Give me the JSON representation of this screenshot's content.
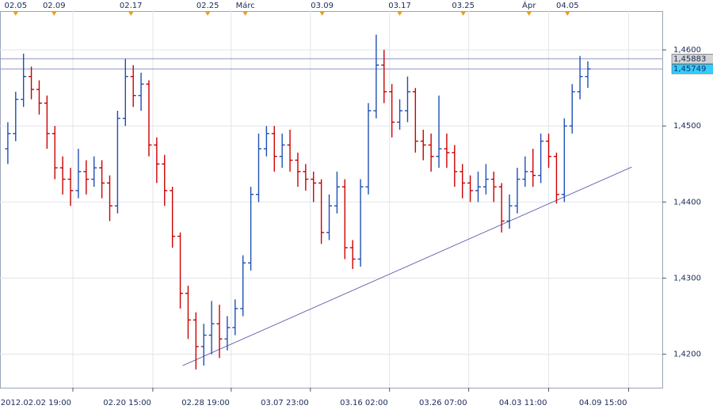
{
  "chart_data": {
    "type": "ohlc",
    "up_color": "#1f4fb4",
    "down_color": "#cc0000",
    "grid": true,
    "xlim": [
      -1,
      83.5
    ],
    "ylim": [
      1.4156,
      1.4651
    ],
    "yticks": [
      {
        "value": 1.42,
        "label": "1,4200"
      },
      {
        "value": 1.43,
        "label": "1,4300"
      },
      {
        "value": 1.44,
        "label": "1,4400"
      },
      {
        "value": 1.45,
        "label": "1,4500"
      },
      {
        "value": 1.46,
        "label": "1,4600"
      }
    ],
    "xticks": [
      {
        "value": 8.3,
        "label": "2012.02.02 19:00"
      },
      {
        "value": 18.5,
        "label": "02.20 15:00"
      },
      {
        "value": 28.5,
        "label": "02.28 19:00"
      },
      {
        "value": 38.6,
        "label": "03.07 23:00"
      },
      {
        "value": 48.7,
        "label": "03.16 02:00"
      },
      {
        "value": 58.8,
        "label": "03.26 07:00"
      },
      {
        "value": 69.0,
        "label": "04.03 11:00"
      },
      {
        "value": 79.2,
        "label": "04.09 15:00"
      }
    ],
    "top_ticks": [
      {
        "value": 1.0,
        "label": "02.05"
      },
      {
        "value": 5.9,
        "label": "02.09"
      },
      {
        "value": 15.7,
        "label": "02.17"
      },
      {
        "value": 25.5,
        "label": "02.25"
      },
      {
        "value": 30.3,
        "label": "Márc"
      },
      {
        "value": 40.1,
        "label": "03.09"
      },
      {
        "value": 50.0,
        "label": "03.17"
      },
      {
        "value": 58.1,
        "label": "03.25"
      },
      {
        "value": 66.5,
        "label": "Ápr"
      },
      {
        "value": 71.4,
        "label": "04.05"
      }
    ],
    "hlines": [
      {
        "value": 1.45883,
        "label": "1,45883",
        "color": "#8b93c9",
        "box": "#d4d4d4"
      },
      {
        "value": 1.45749,
        "label": "1,45749",
        "color": "#8b93c9",
        "box": "#33ccff"
      }
    ],
    "trendline": {
      "x": [
        22.3,
        79.6
      ],
      "y": [
        1.4185,
        1.4446
      ],
      "color": "#4a4aa0"
    },
    "open": [
      1.447,
      1.449,
      1.4535,
      1.4565,
      1.4548,
      1.453,
      1.449,
      1.4445,
      1.443,
      1.4415,
      1.444,
      1.443,
      1.4445,
      1.4425,
      1.4395,
      1.451,
      1.4565,
      1.454,
      1.4555,
      1.4475,
      1.445,
      1.4415,
      1.4355,
      1.428,
      1.4245,
      1.421,
      1.4225,
      1.424,
      1.422,
      1.4235,
      1.426,
      1.432,
      1.441,
      1.447,
      1.449,
      1.446,
      1.4475,
      1.4455,
      1.444,
      1.443,
      1.4425,
      1.436,
      1.4395,
      1.442,
      1.434,
      1.4325,
      1.442,
      1.452,
      1.458,
      1.4545,
      1.4505,
      1.452,
      1.4545,
      1.448,
      1.4475,
      1.446,
      1.447,
      1.4465,
      1.444,
      1.4425,
      1.4415,
      1.442,
      1.443,
      1.442,
      1.4375,
      1.4395,
      1.443,
      1.444,
      1.4435,
      1.448,
      1.446,
      1.441,
      1.45,
      1.4545,
      1.4565
    ],
    "high": [
      1.4505,
      1.4545,
      1.4595,
      1.4578,
      1.456,
      1.454,
      1.45,
      1.446,
      1.4445,
      1.447,
      1.4455,
      1.446,
      1.4455,
      1.4435,
      1.452,
      1.4588,
      1.458,
      1.457,
      1.456,
      1.4485,
      1.4462,
      1.442,
      1.436,
      1.429,
      1.4255,
      1.424,
      1.427,
      1.4265,
      1.425,
      1.4272,
      1.433,
      1.442,
      1.449,
      1.45,
      1.45,
      1.449,
      1.4495,
      1.4465,
      1.445,
      1.444,
      1.443,
      1.441,
      1.444,
      1.443,
      1.435,
      1.443,
      1.453,
      1.462,
      1.46,
      1.4555,
      1.4535,
      1.4565,
      1.455,
      1.4495,
      1.449,
      1.454,
      1.449,
      1.4475,
      1.445,
      1.4435,
      1.444,
      1.445,
      1.444,
      1.4425,
      1.441,
      1.4445,
      1.446,
      1.447,
      1.449,
      1.449,
      1.4465,
      1.451,
      1.4555,
      1.4592,
      1.4585
    ],
    "low": [
      1.445,
      1.448,
      1.4525,
      1.4535,
      1.4515,
      1.447,
      1.443,
      1.441,
      1.4395,
      1.4405,
      1.441,
      1.442,
      1.4405,
      1.4375,
      1.4385,
      1.45,
      1.4525,
      1.452,
      1.446,
      1.4425,
      1.4395,
      1.434,
      1.426,
      1.422,
      1.418,
      1.4185,
      1.42,
      1.4195,
      1.4205,
      1.4225,
      1.425,
      1.431,
      1.44,
      1.446,
      1.444,
      1.4445,
      1.444,
      1.442,
      1.4415,
      1.44,
      1.4345,
      1.435,
      1.4385,
      1.4325,
      1.4312,
      1.4315,
      1.441,
      1.451,
      1.453,
      1.4485,
      1.4495,
      1.4505,
      1.4465,
      1.4455,
      1.444,
      1.4445,
      1.4445,
      1.442,
      1.4405,
      1.44,
      1.44,
      1.441,
      1.44,
      1.436,
      1.4365,
      1.4385,
      1.442,
      1.442,
      1.4425,
      1.4445,
      1.4398,
      1.44,
      1.449,
      1.4535,
      1.455
    ],
    "close": [
      1.449,
      1.4535,
      1.4565,
      1.4548,
      1.453,
      1.449,
      1.4445,
      1.443,
      1.4415,
      1.444,
      1.443,
      1.4445,
      1.4425,
      1.4395,
      1.451,
      1.4565,
      1.454,
      1.4555,
      1.4475,
      1.445,
      1.4415,
      1.4355,
      1.428,
      1.4245,
      1.421,
      1.4225,
      1.424,
      1.422,
      1.4235,
      1.426,
      1.432,
      1.441,
      1.447,
      1.449,
      1.446,
      1.4475,
      1.4455,
      1.444,
      1.443,
      1.4425,
      1.436,
      1.4395,
      1.442,
      1.434,
      1.4325,
      1.442,
      1.452,
      1.458,
      1.4545,
      1.4505,
      1.452,
      1.4545,
      1.448,
      1.4475,
      1.446,
      1.447,
      1.4465,
      1.444,
      1.4425,
      1.4415,
      1.442,
      1.443,
      1.442,
      1.4375,
      1.4395,
      1.443,
      1.444,
      1.4435,
      1.448,
      1.446,
      1.441,
      1.45,
      1.4545,
      1.4565,
      1.4575
    ]
  }
}
